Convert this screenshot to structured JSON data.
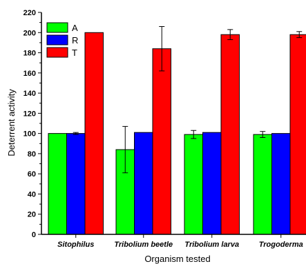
{
  "chart_data": {
    "type": "bar",
    "categories": [
      "Sitophilus",
      "Tribolium beetle",
      "Tribolium larva",
      "Trogoderma"
    ],
    "series": [
      {
        "name": "A",
        "color": "#00ff00",
        "values": [
          100,
          84,
          99,
          99
        ],
        "errors": [
          0,
          23,
          4,
          3
        ]
      },
      {
        "name": "R",
        "color": "#0000ff",
        "values": [
          100,
          101,
          101,
          100
        ],
        "errors": [
          1,
          0,
          0,
          0
        ]
      },
      {
        "name": "T",
        "color": "#ff0000",
        "values": [
          200,
          184,
          198,
          198
        ],
        "errors": [
          0,
          22,
          5,
          3
        ]
      }
    ],
    "xlabel": "Organism tested",
    "ylabel": "Deterrent activity",
    "ylim": [
      0,
      220
    ],
    "yticks": [
      0,
      20,
      40,
      60,
      80,
      100,
      120,
      140,
      160,
      180,
      200,
      220
    ],
    "legend": "top-left",
    "grid": false
  }
}
